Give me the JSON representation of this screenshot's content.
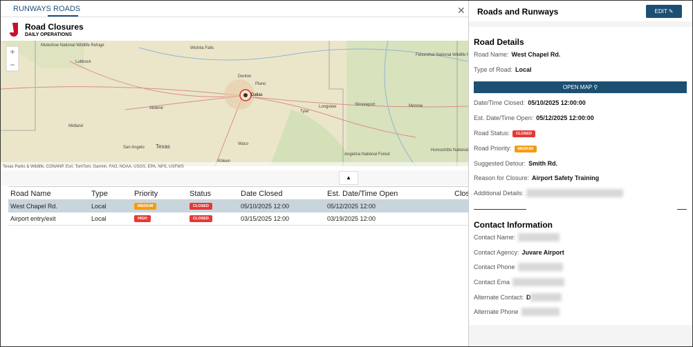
{
  "tabs": [
    "RUNWAYS",
    "ROADS"
  ],
  "header": {
    "title": "Road Closures",
    "subtitle": "DAILY OPERATIONS"
  },
  "map": {
    "labels": [
      "Muleshoe National Wildlife Refuge",
      "Lubbock",
      "Wichita Falls",
      "Denton",
      "Plano",
      "Dallas",
      "Abilene",
      "Midland",
      "Tyler",
      "Longview",
      "Shreveport",
      "Monroe",
      "Waco",
      "San Angelo",
      "Texas",
      "Killeen",
      "Felsenthal National Wildlife Refuge",
      "Angelina National Forest",
      "Homochitto National Forest"
    ],
    "attribution": "Texas Parks & Wildlife, CONANP, Esri, TomTom, Garmin, FAO, NOAA, USGS, EPA, NPS, USFWS"
  },
  "table": {
    "columns": [
      "Road Name",
      "Type",
      "Priority",
      "Status",
      "Date Closed",
      "Est. Date/Time Open",
      "Closu"
    ],
    "rows": [
      [
        "West Chapel Rd.",
        "Local",
        "MEDIUM",
        "CLOSED",
        "05/10/2025 12:00",
        "05/12/2025 12:00"
      ],
      [
        "Airport entry/exit",
        "Local",
        "HIGH",
        "CLOSED",
        "03/15/2025 12:00",
        "03/19/2025 12:00"
      ]
    ]
  },
  "panel": {
    "title": "Roads and Runways",
    "edit": "EDIT",
    "road_details": {
      "heading": "Road Details",
      "open_map": "OPEN MAP",
      "fields": [
        {
          "label": "Road Name:",
          "value": "West Chapel Rd."
        },
        {
          "label": "Type of Road:",
          "value": "Local"
        },
        {
          "label": "Date/Time Closed:",
          "value": "05/10/2025 12:00:00"
        },
        {
          "label": "Est. Date/Time Open:",
          "value": "05/12/2025 12:00:00"
        },
        {
          "label": "Road Status:",
          "value": "CLOSED"
        },
        {
          "label": "Road Priority:",
          "value": "MEDIUM"
        },
        {
          "label": "Suggested Detour:",
          "value": "Smith Rd."
        },
        {
          "label": "Reason for Closure:",
          "value": "Airport Safety Training"
        },
        {
          "label": "Additional Details:"
        }
      ]
    },
    "contact": {
      "heading": "Contact Information",
      "fields": [
        {
          "label": "Contact Name:"
        },
        {
          "label": "Contact Agency:",
          "value": "Juvare Airport"
        },
        {
          "label": "Contact Phone"
        },
        {
          "label": "Contact Ema"
        },
        {
          "label": "Alternate Contact:",
          "value": "D"
        },
        {
          "label": "Alternate Phone"
        }
      ]
    }
  }
}
